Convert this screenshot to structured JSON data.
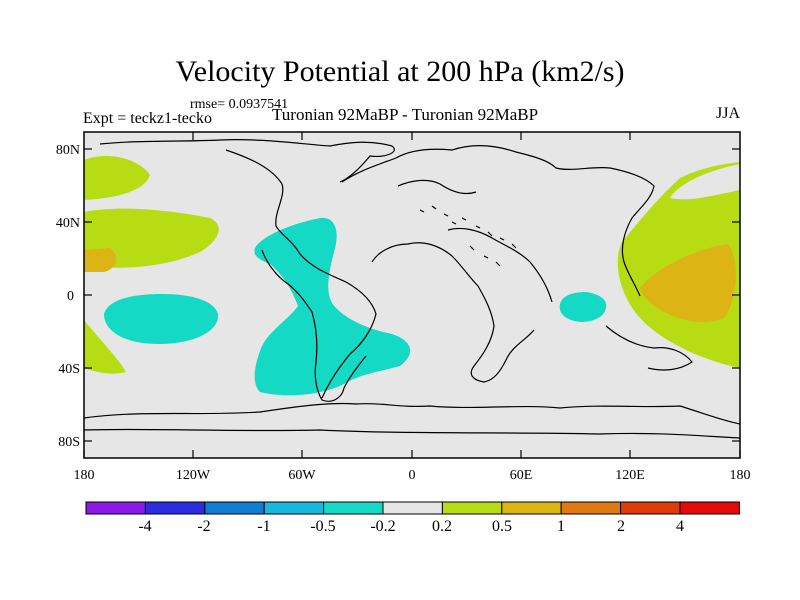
{
  "title": "Velocity Potential at 200 hPa (km2/s)",
  "rmse_label": "rmse= 0.0937541",
  "expt_label": "Expt = teckz1-tecko",
  "subtitle": "Turonian  92MaBP - Turonian  92MaBP",
  "season": "JJA",
  "axes": {
    "lat_ticks": [
      "80N",
      "40N",
      "0",
      "40S",
      "80S"
    ],
    "lon_ticks": [
      "180",
      "120W",
      "60W",
      "0",
      "60E",
      "120E",
      "180"
    ]
  },
  "colorbar": {
    "labels": [
      "-4",
      "-2",
      "-1",
      "-0.5",
      "-0.2",
      "0.2",
      "0.5",
      "1",
      "2",
      "4"
    ],
    "colors": [
      "#8a1ae6",
      "#2c2ce0",
      "#0f7fd6",
      "#17b7e0",
      "#14d9c4",
      "#e6e6e6",
      "#b8dc14",
      "#dcb414",
      "#e07814",
      "#e03c0a",
      "#e60a0a"
    ]
  },
  "colors": {
    "background_field": "#e6e6e6",
    "negative_contour": "#14d9c4",
    "positive_low": "#b8dc14",
    "positive_mid": "#dcb414",
    "coastline": "#000000"
  }
}
